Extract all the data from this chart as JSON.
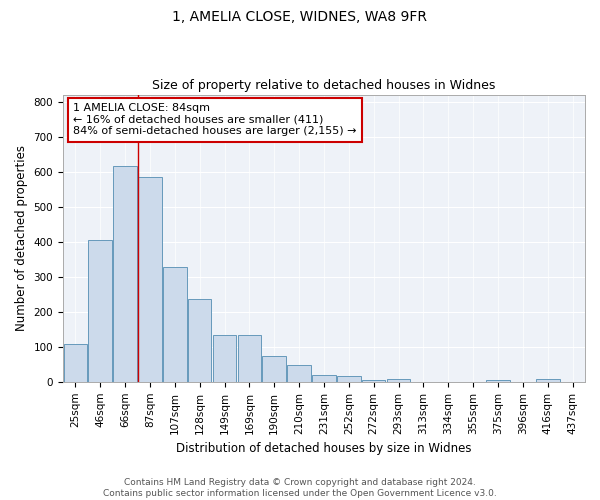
{
  "title1": "1, AMELIA CLOSE, WIDNES, WA8 9FR",
  "title2": "Size of property relative to detached houses in Widnes",
  "xlabel": "Distribution of detached houses by size in Widnes",
  "ylabel": "Number of detached properties",
  "footer": "Contains HM Land Registry data © Crown copyright and database right 2024.\nContains public sector information licensed under the Open Government Licence v3.0.",
  "bin_labels": [
    "25sqm",
    "46sqm",
    "66sqm",
    "87sqm",
    "107sqm",
    "128sqm",
    "149sqm",
    "169sqm",
    "190sqm",
    "210sqm",
    "231sqm",
    "252sqm",
    "272sqm",
    "293sqm",
    "313sqm",
    "334sqm",
    "355sqm",
    "375sqm",
    "396sqm",
    "416sqm",
    "437sqm"
  ],
  "bar_values": [
    107,
    405,
    615,
    585,
    328,
    235,
    133,
    133,
    75,
    47,
    20,
    18,
    5,
    8,
    0,
    0,
    0,
    5,
    0,
    8,
    0
  ],
  "bar_color": "#ccdaeb",
  "bar_edgecolor": "#6699bb",
  "bar_linewidth": 0.7,
  "annotation_text": "1 AMELIA CLOSE: 84sqm\n← 16% of detached houses are smaller (411)\n84% of semi-detached houses are larger (2,155) →",
  "annotation_box_color": "#ffffff",
  "annotation_box_edgecolor": "#cc0000",
  "red_line_color": "#cc0000",
  "background_color": "#ffffff",
  "plot_bg_color": "#eef2f8",
  "ylim": [
    0,
    820
  ],
  "yticks": [
    0,
    100,
    200,
    300,
    400,
    500,
    600,
    700,
    800
  ],
  "title1_fontsize": 10,
  "title2_fontsize": 9,
  "xlabel_fontsize": 8.5,
  "ylabel_fontsize": 8.5,
  "footer_fontsize": 6.5,
  "annotation_fontsize": 8,
  "tick_fontsize": 7.5
}
